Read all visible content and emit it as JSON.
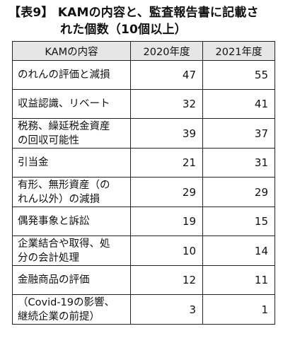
{
  "title": {
    "line1": "【表9】 KAMの内容と、監査報告書に記載さ",
    "line2": "れた個数（10個以上）"
  },
  "table": {
    "headers": [
      "KAMの内容",
      "2020年度",
      "2021年度"
    ],
    "rows": [
      {
        "label": [
          "のれんの評価と減損"
        ],
        "y2020": "47",
        "y2021": "55"
      },
      {
        "label": [
          "収益認識、リベート"
        ],
        "y2020": "32",
        "y2021": "41"
      },
      {
        "label": [
          "税務、繰延税金資産",
          "の回収可能性"
        ],
        "y2020": "39",
        "y2021": "37"
      },
      {
        "label": [
          "引当金"
        ],
        "y2020": "21",
        "y2021": "31"
      },
      {
        "label": [
          "有形、無形資産（の",
          "れん以外）の減損"
        ],
        "y2020": "29",
        "y2021": "29"
      },
      {
        "label": [
          "偶発事象と訴訟"
        ],
        "y2020": "19",
        "y2021": "15"
      },
      {
        "label": [
          "企業結合や取得、処",
          "分の会計処理"
        ],
        "y2020": "10",
        "y2021": "14"
      },
      {
        "label": [
          "金融商品の評価"
        ],
        "y2020": "12",
        "y2021": "11"
      },
      {
        "label": [
          "（Covid-19の影響、",
          "継続企業の前提）"
        ],
        "y2020": "3",
        "y2021": "1"
      }
    ]
  }
}
